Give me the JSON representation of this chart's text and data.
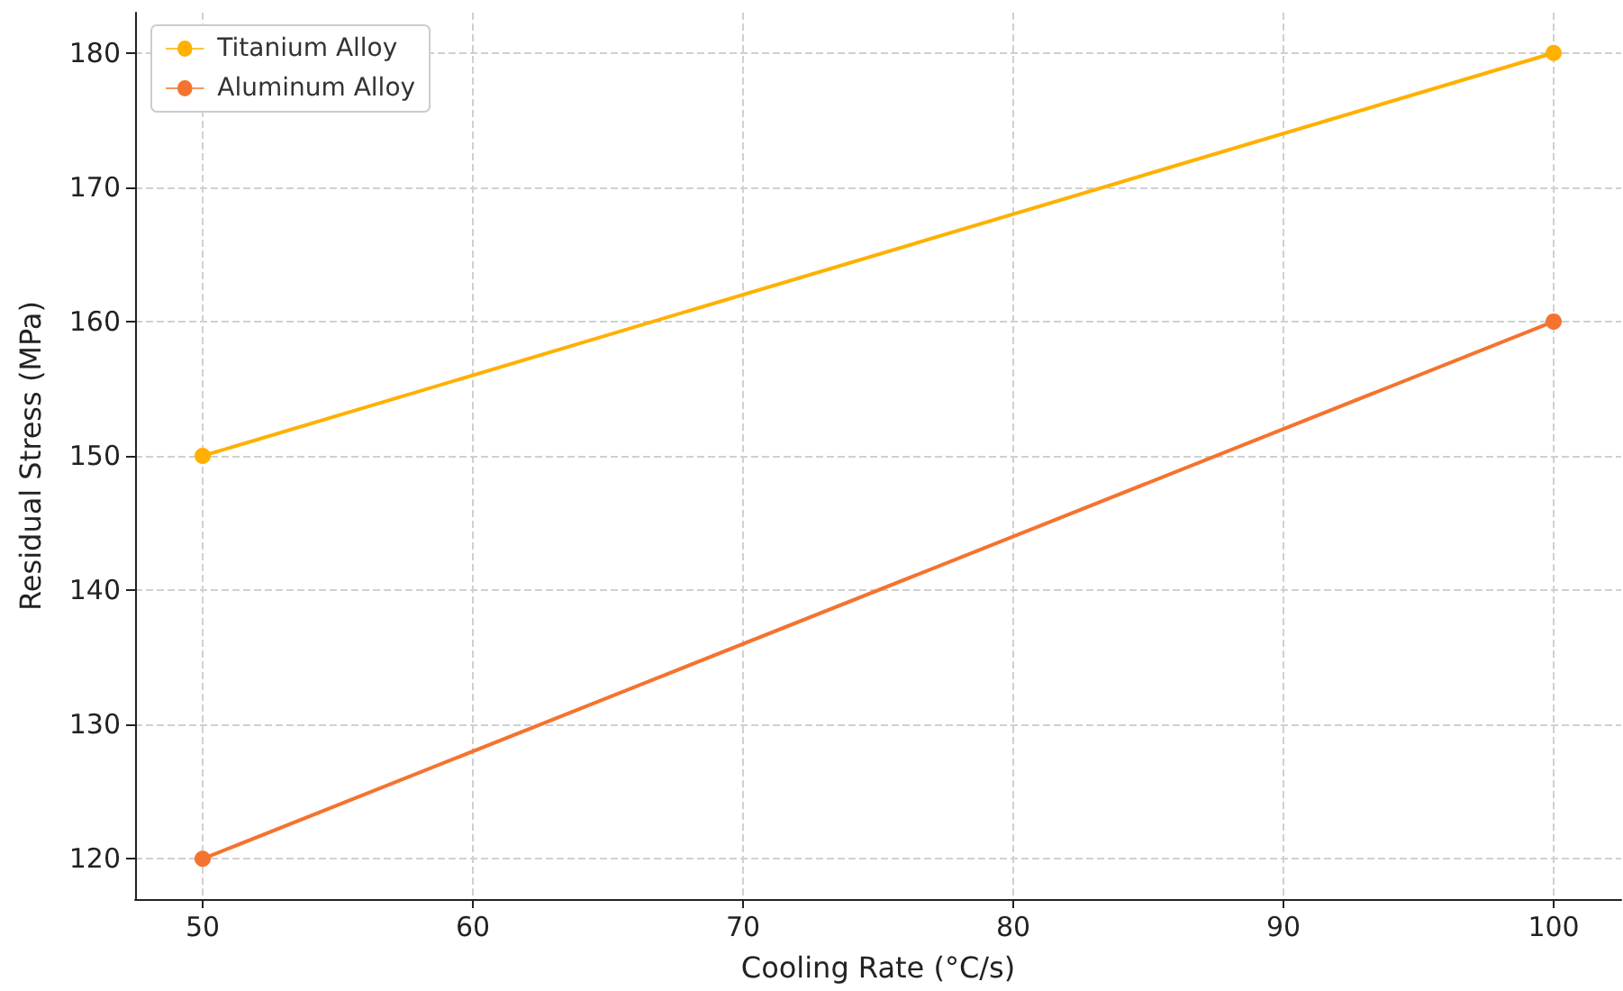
{
  "chart_data": {
    "type": "line",
    "xlabel": "Cooling Rate (°C/s)",
    "ylabel": "Residual Stress (MPa)",
    "x": [
      50,
      100
    ],
    "series": [
      {
        "name": "Titanium Alloy",
        "color": "#ffb000",
        "values": [
          150,
          180
        ]
      },
      {
        "name": "Aluminum Alloy",
        "color": "#f4732f",
        "values": [
          120,
          160
        ]
      }
    ],
    "xlim": [
      47.5,
      102.5
    ],
    "xticks": [
      50,
      60,
      70,
      80,
      90,
      100
    ],
    "ylim": [
      117,
      183
    ],
    "yticks": [
      120,
      130,
      140,
      150,
      160,
      170,
      180
    ],
    "grid": true,
    "legend": "top left",
    "marker": "circle",
    "line_style": "solid"
  }
}
